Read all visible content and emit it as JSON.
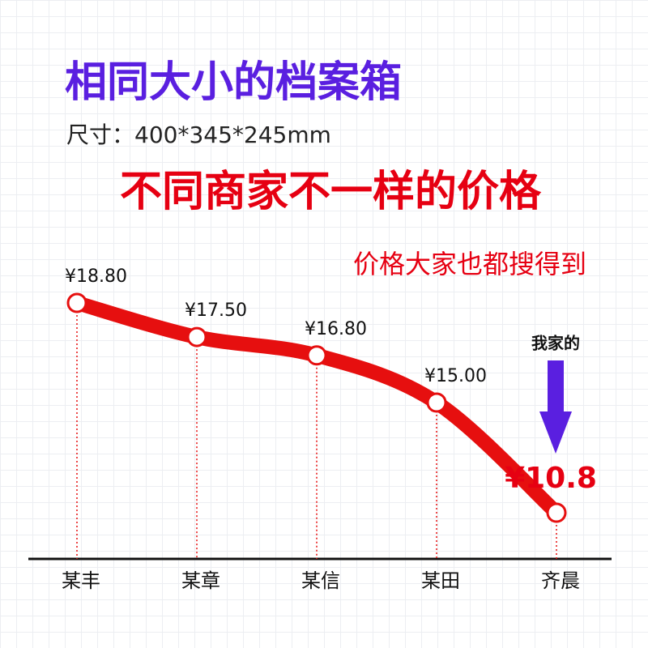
{
  "chart_data": {
    "type": "line",
    "title": "相同大小的档案箱",
    "subtitle": "尺寸：400*345*245mm",
    "headline": "不同商家不一样的价格",
    "note": "价格大家也都搜得到",
    "annotation": "我家的",
    "categories": [
      "某丰",
      "某章",
      "某信",
      "某田",
      "齐晨"
    ],
    "values": [
      18.8,
      17.5,
      16.8,
      15.0,
      10.8
    ],
    "value_labels": [
      "¥18.80",
      "¥17.50",
      "¥16.80",
      "¥15.00",
      "¥10.8"
    ],
    "color": "#e60f0f"
  }
}
